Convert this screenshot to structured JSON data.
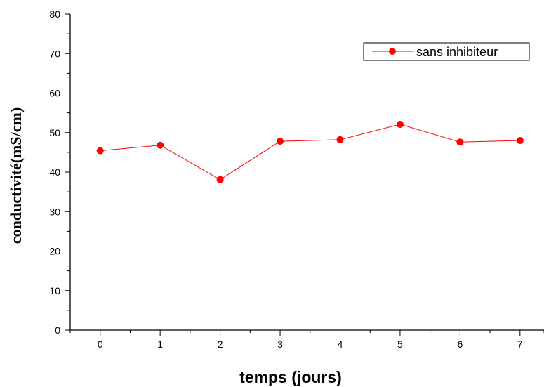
{
  "chart_data": {
    "type": "line",
    "x": [
      0,
      1,
      2,
      3,
      4,
      5,
      6,
      7
    ],
    "x_tick_labels": [
      "0",
      "1",
      "2",
      "3",
      "4",
      "5",
      "6",
      "7"
    ],
    "xlim": [
      -0.5,
      7.4
    ],
    "ylim": [
      0,
      80
    ],
    "y_ticks": [
      0,
      10,
      20,
      30,
      40,
      50,
      60,
      70,
      80
    ],
    "y_tick_labels": [
      "0",
      "10",
      "20",
      "30",
      "40",
      "50",
      "60",
      "70",
      "80"
    ],
    "xlabel": "temps (jours)",
    "ylabel": "conductivité(mS/cm)",
    "grid": false,
    "legend_position": "top-right",
    "series": [
      {
        "name": "sans inhibiteur",
        "color": "#ff0000",
        "marker": "circle",
        "values": [
          45.4,
          46.8,
          38.1,
          47.8,
          48.2,
          52.1,
          47.6,
          48.0
        ]
      }
    ]
  }
}
